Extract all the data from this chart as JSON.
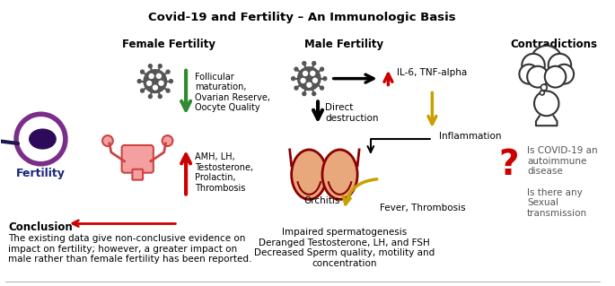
{
  "title": "Covid-19 and Fertility – An Immunologic Basis",
  "title_fontsize": 9.5,
  "background_color": "#ffffff",
  "female_fertility_title": "Female Fertility",
  "male_fertility_title": "Male Fertility",
  "contradictions_title": "Contradictions",
  "fertility_label": "Fertility",
  "conclusion_title": "Conclusion",
  "conclusion_text": "The existing data give non-conclusive evidence on\nimpact on fertility; however, a greater impact on\nmale rather than female fertility has been reported.",
  "female_down_text": "Follicular\nmaturation,\nOvarian Reserve,\nOocyte Quality",
  "female_up_text": "AMH, LH,\nTestosterone,\nProlactin,\nThrombosis",
  "male_right_text": "IL-6, TNF-alpha",
  "male_direct_text": "Direct\ndestruction",
  "male_inflammation_text": "Inflammation",
  "male_orchitis_text": "Orchitis",
  "male_fever_text": "Fever, Thrombosis",
  "male_bottom_text": "Impaired spermatogenesis\nDeranged Testosterone, LH, and FSH\nDecreased Sperm quality, motility and\nconcentration",
  "contradictions_q1": "Is COVID-19 an\nautoimmune\ndisease",
  "contradictions_q2": "Is there any\nSexual\ntransmission",
  "color_green": "#2e8b2e",
  "color_red": "#cc0000",
  "color_black": "#000000",
  "color_dark_gray": "#555555",
  "color_gold": "#c8a000",
  "color_purple": "#7B2D8B",
  "color_navy": "#1a237e",
  "color_peach": "#e8a87c",
  "color_dark_red": "#8b0000"
}
